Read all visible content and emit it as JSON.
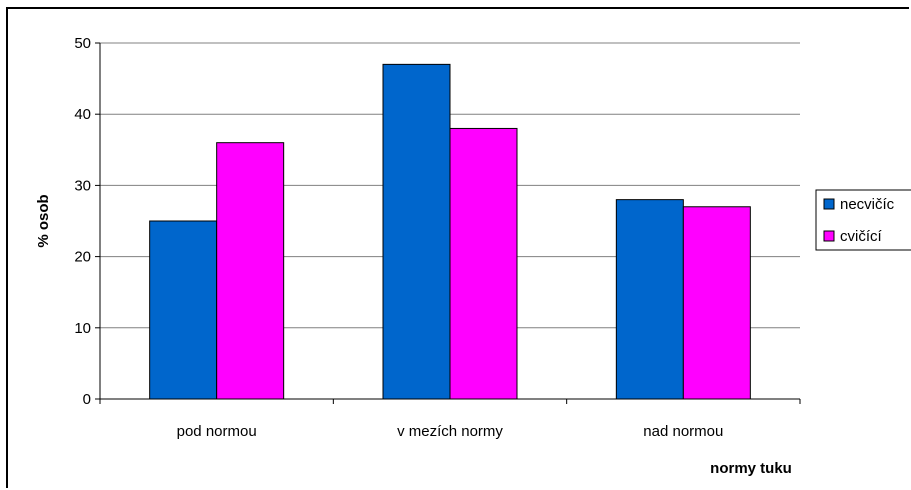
{
  "chart_data": {
    "type": "bar",
    "categories": [
      "pod normou",
      "v mezích normy",
      "nad normou"
    ],
    "series": [
      {
        "name": "necvičící",
        "values": [
          25,
          47,
          28
        ],
        "color": "#0066CC"
      },
      {
        "name": "cvičící",
        "values": [
          36,
          38,
          27
        ],
        "color": "#FF00FF"
      }
    ],
    "yticks": [
      0,
      10,
      20,
      30,
      40,
      50
    ],
    "ylim": [
      0,
      50
    ],
    "xlabel": "normy tuku",
    "ylabel": "% osob",
    "grid": true,
    "legend": "right",
    "legend_labels": [
      "necvičíc",
      "cvičící"
    ]
  }
}
